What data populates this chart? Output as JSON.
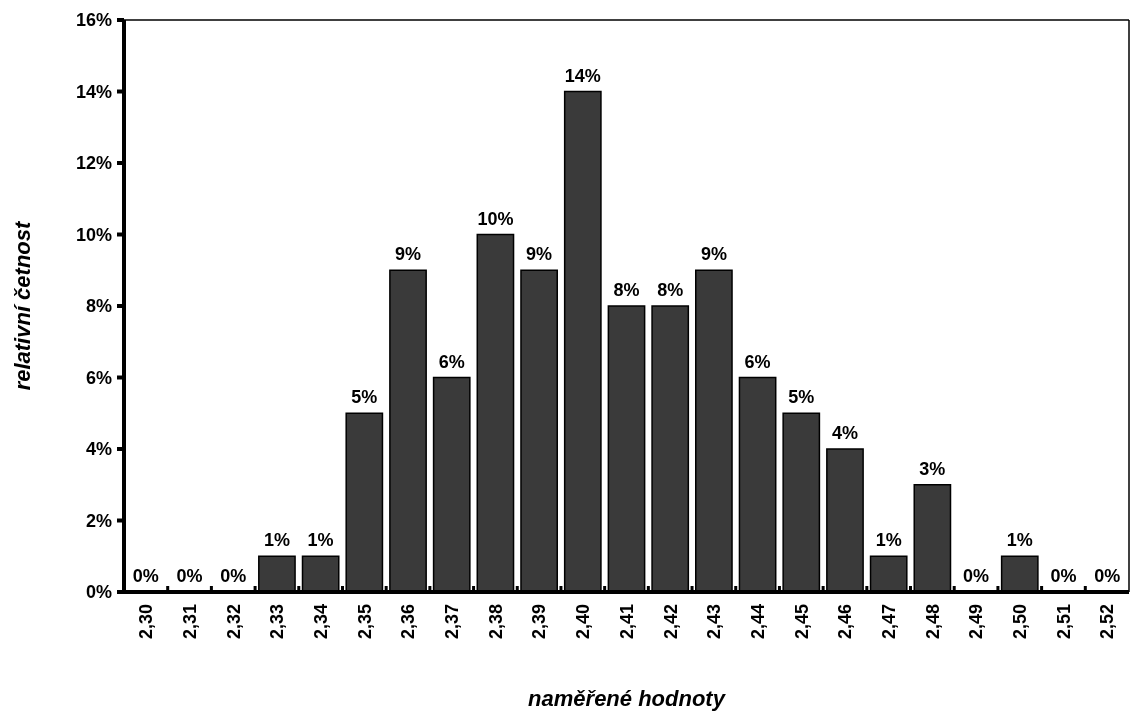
{
  "chart_data": {
    "type": "bar",
    "xlabel": "naměřené hodnoty",
    "ylabel": "relativní četnost",
    "categories": [
      "2,30",
      "2,31",
      "2,32",
      "2,33",
      "2,34",
      "2,35",
      "2,36",
      "2,37",
      "2,38",
      "2,39",
      "2,40",
      "2,41",
      "2,42",
      "2,43",
      "2,44",
      "2,45",
      "2,46",
      "2,47",
      "2,48",
      "2,49",
      "2,50",
      "2,51",
      "2,52"
    ],
    "values": [
      0,
      0,
      0,
      1,
      1,
      5,
      9,
      6,
      10,
      9,
      14,
      8,
      8,
      9,
      6,
      5,
      4,
      1,
      3,
      0,
      1,
      0,
      0
    ],
    "value_labels": [
      "0%",
      "0%",
      "0%",
      "1%",
      "1%",
      "5%",
      "9%",
      "6%",
      "10%",
      "9%",
      "14%",
      "8%",
      "8%",
      "9%",
      "6%",
      "5%",
      "4%",
      "1%",
      "3%",
      "0%",
      "1%",
      "0%",
      "0%"
    ],
    "color": "#3a3a3a",
    "ylim": [
      0,
      16
    ],
    "yticks": [
      {
        "value": 0,
        "label": "0%"
      },
      {
        "value": 2,
        "label": "2%"
      },
      {
        "value": 4,
        "label": "4%"
      },
      {
        "value": 6,
        "label": "6%"
      },
      {
        "value": 8,
        "label": "8%"
      },
      {
        "value": 10,
        "label": "10%"
      },
      {
        "value": 12,
        "label": "12%"
      },
      {
        "value": 14,
        "label": "14%"
      },
      {
        "value": 16,
        "label": "16%"
      }
    ],
    "grid": false
  }
}
